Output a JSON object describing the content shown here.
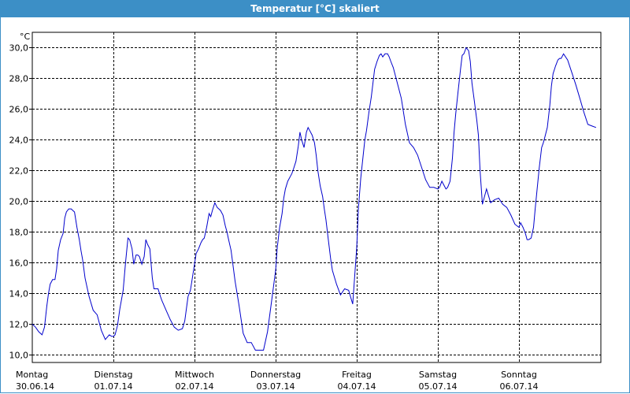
{
  "chart_data": {
    "type": "line",
    "title": "Temperatur [°C] skaliert",
    "unit": "°C",
    "ylim": [
      9.5,
      31.0
    ],
    "y_ticks": [
      "10,0",
      "12,0",
      "14,0",
      "16,0",
      "18,0",
      "20,0",
      "22,0",
      "24,0",
      "26,0",
      "28,0",
      "30,0"
    ],
    "y_tick_values": [
      10,
      12,
      14,
      16,
      18,
      20,
      22,
      24,
      26,
      28,
      30
    ],
    "xlim": [
      0,
      6.95
    ],
    "x_ticks": [
      {
        "day": "Montag",
        "date": "30.06.14"
      },
      {
        "day": "Dienstag",
        "date": "01.07.14"
      },
      {
        "day": "Mittwoch",
        "date": "02.07.14"
      },
      {
        "day": "Donnerstag",
        "date": "03.07.14"
      },
      {
        "day": "Freitag",
        "date": "04.07.14"
      },
      {
        "day": "Samstag",
        "date": "05.07.14"
      },
      {
        "day": "Sonntag",
        "date": "06.07.14"
      }
    ],
    "grid": true,
    "line_color": "#0000cc",
    "series": [
      {
        "x": [
          0.0,
          0.04,
          0.08,
          0.12,
          0.15,
          0.18,
          0.2,
          0.22,
          0.25,
          0.28,
          0.3,
          0.32,
          0.35,
          0.38,
          0.4,
          0.42,
          0.45,
          0.48,
          0.5,
          0.52,
          0.55,
          0.58,
          0.6,
          0.62,
          0.65,
          0.7,
          0.75,
          0.8,
          0.85,
          0.9,
          0.95,
          0.98,
          1.0,
          1.02,
          1.05,
          1.08,
          1.12,
          1.15,
          1.18,
          1.2,
          1.23,
          1.25,
          1.28,
          1.3,
          1.32,
          1.35,
          1.38,
          1.4,
          1.42,
          1.45,
          1.48,
          1.5,
          1.52,
          1.55,
          1.58,
          1.6,
          1.65,
          1.7,
          1.75,
          1.8,
          1.85,
          1.88,
          1.9,
          1.92,
          1.95,
          2.0,
          2.02,
          2.05,
          2.08,
          2.1,
          2.12,
          2.15,
          2.18,
          2.2,
          2.22,
          2.25,
          2.28,
          2.3,
          2.32,
          2.35,
          2.38,
          2.4,
          2.42,
          2.45,
          2.5,
          2.55,
          2.6,
          2.65,
          2.7,
          2.75,
          2.8,
          2.85,
          2.9,
          2.95,
          3.0,
          3.02,
          3.05,
          3.08,
          3.1,
          3.12,
          3.15,
          3.18,
          3.2,
          3.22,
          3.25,
          3.28,
          3.3,
          3.32,
          3.35,
          3.38,
          3.4,
          3.42,
          3.45,
          3.48,
          3.5,
          3.52,
          3.55,
          3.58,
          3.6,
          3.62,
          3.65,
          3.68,
          3.7,
          3.75,
          3.8,
          3.85,
          3.9,
          3.95,
          4.0,
          4.02,
          4.05,
          4.08,
          4.1,
          4.12,
          4.15,
          4.18,
          4.2,
          4.22,
          4.25,
          4.28,
          4.3,
          4.32,
          4.35,
          4.38,
          4.4,
          4.42,
          4.45,
          4.5,
          4.55,
          4.6,
          4.65,
          4.7,
          4.75,
          4.8,
          4.85,
          4.9,
          4.95,
          5.0,
          5.02,
          5.05,
          5.08,
          5.1,
          5.12,
          5.15,
          5.18,
          5.2,
          5.22,
          5.25,
          5.28,
          5.3,
          5.32,
          5.35,
          5.38,
          5.4,
          5.42,
          5.45,
          5.48,
          5.5,
          5.52,
          5.55,
          5.6,
          5.65,
          5.7,
          5.75,
          5.8,
          5.85,
          5.9,
          5.95,
          6.0,
          6.02,
          6.05,
          6.08,
          6.1,
          6.12,
          6.15,
          6.18,
          6.2,
          6.22,
          6.25,
          6.28,
          6.3,
          6.32,
          6.35,
          6.38,
          6.4,
          6.42,
          6.45,
          6.48,
          6.5,
          6.52,
          6.55,
          6.6,
          6.65,
          6.7,
          6.75,
          6.8,
          6.85,
          6.9,
          6.95
        ],
        "values": [
          12.0,
          11.8,
          11.5,
          11.3,
          11.8,
          13.2,
          14.0,
          14.6,
          14.9,
          14.9,
          15.6,
          16.8,
          17.5,
          17.9,
          18.9,
          19.3,
          19.5,
          19.5,
          19.4,
          19.3,
          18.3,
          17.5,
          16.8,
          16.2,
          15.0,
          13.8,
          12.9,
          12.6,
          11.6,
          11.0,
          11.3,
          11.2,
          11.2,
          11.3,
          11.9,
          13.0,
          14.2,
          16.0,
          17.6,
          17.5,
          16.9,
          15.9,
          16.5,
          16.5,
          16.4,
          15.9,
          16.4,
          17.5,
          17.2,
          16.9,
          15.0,
          14.3,
          14.3,
          14.3,
          13.8,
          13.5,
          12.9,
          12.3,
          11.8,
          11.6,
          11.7,
          12.2,
          13.0,
          13.8,
          14.2,
          15.9,
          16.6,
          16.9,
          17.3,
          17.5,
          17.6,
          18.3,
          19.2,
          19.0,
          19.4,
          19.9,
          19.6,
          19.5,
          19.4,
          19.1,
          18.4,
          18.0,
          17.5,
          16.8,
          14.8,
          13.2,
          11.4,
          10.8,
          10.8,
          10.3,
          10.3,
          10.3,
          11.5,
          13.5,
          15.5,
          17.0,
          18.3,
          19.2,
          20.2,
          20.8,
          21.3,
          21.6,
          21.8,
          22.1,
          22.6,
          23.6,
          24.5,
          24.0,
          23.5,
          24.5,
          24.8,
          24.6,
          24.3,
          23.8,
          23.0,
          22.0,
          21.0,
          20.3,
          19.5,
          18.8,
          17.5,
          16.2,
          15.5,
          14.6,
          13.9,
          14.3,
          14.2,
          13.3,
          17.0,
          19.5,
          21.5,
          23.0,
          24.0,
          24.6,
          25.8,
          26.8,
          27.7,
          28.6,
          29.1,
          29.5,
          29.6,
          29.4,
          29.6,
          29.6,
          29.4,
          29.1,
          28.7,
          27.7,
          26.7,
          25.0,
          23.8,
          23.5,
          23.0,
          22.2,
          21.4,
          20.9,
          20.9,
          20.8,
          20.9,
          21.3,
          21.0,
          20.8,
          20.9,
          21.3,
          22.8,
          24.5,
          25.7,
          27.2,
          28.6,
          29.5,
          29.6,
          30.0,
          29.8,
          29.1,
          27.7,
          26.5,
          25.3,
          24.3,
          22.0,
          19.8,
          20.8,
          19.9,
          20.1,
          20.2,
          19.8,
          19.6,
          19.1,
          18.5,
          18.3,
          18.6,
          18.3,
          17.9,
          17.5,
          17.5,
          17.6,
          18.3,
          19.5,
          20.6,
          22.2,
          23.5,
          23.8,
          24.2,
          24.8,
          26.2,
          27.5,
          28.3,
          28.8,
          29.2,
          29.3,
          29.3,
          29.6,
          29.2,
          28.4,
          27.6,
          26.7,
          25.8,
          25.0,
          24.9,
          24.8
        ]
      }
    ]
  }
}
